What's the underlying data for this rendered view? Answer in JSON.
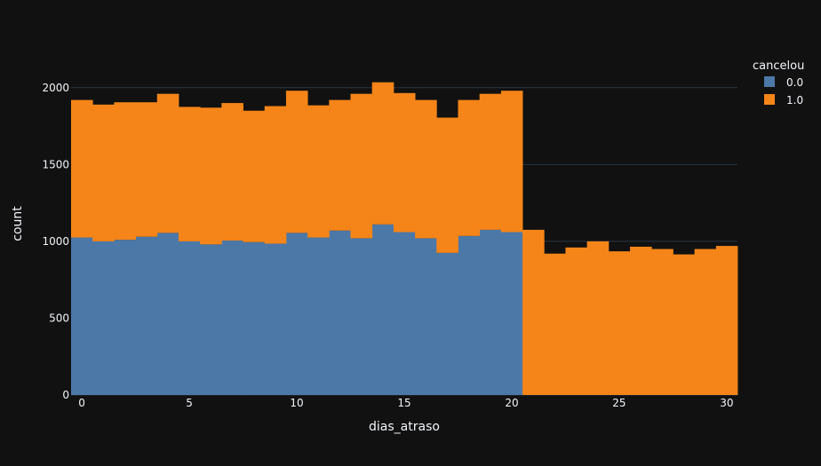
{
  "chart_data": {
    "type": "bar",
    "barmode": "stack",
    "xlabel": "dias_atraso",
    "ylabel": "count",
    "x": [
      0,
      1,
      2,
      3,
      4,
      5,
      6,
      7,
      8,
      9,
      10,
      11,
      12,
      13,
      14,
      15,
      16,
      17,
      18,
      19,
      20,
      21,
      22,
      23,
      24,
      25,
      26,
      27,
      28,
      29,
      30
    ],
    "xlim": [
      -0.5,
      30.5
    ],
    "ylim": [
      0,
      2120
    ],
    "x_ticks": [
      0,
      5,
      10,
      15,
      20,
      25,
      30
    ],
    "y_ticks": [
      0,
      500,
      1000,
      1500,
      2000
    ],
    "grid": true,
    "legend": {
      "title": "cancelou",
      "placement": "top-right"
    },
    "series": [
      {
        "name": "0.0",
        "color": "#4c78a8",
        "values": [
          1025,
          1000,
          1010,
          1030,
          1055,
          1000,
          980,
          1005,
          995,
          985,
          1055,
          1025,
          1070,
          1020,
          1110,
          1060,
          1020,
          925,
          1035,
          1075,
          1060,
          0,
          0,
          0,
          0,
          0,
          0,
          0,
          0,
          0,
          0
        ]
      },
      {
        "name": "1.0",
        "color": "#f58518",
        "values": [
          895,
          890,
          895,
          875,
          905,
          875,
          890,
          895,
          855,
          895,
          925,
          860,
          850,
          940,
          925,
          905,
          900,
          880,
          885,
          885,
          920,
          1075,
          920,
          960,
          1000,
          935,
          965,
          950,
          915,
          950,
          970
        ]
      }
    ]
  },
  "colors": {
    "background": "#111111",
    "grid": "#283442",
    "text": "#f2f5fa"
  }
}
